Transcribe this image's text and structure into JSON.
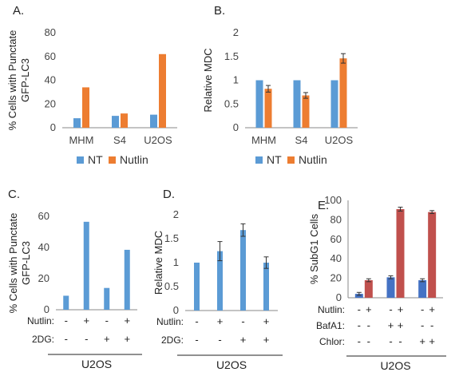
{
  "colors": {
    "nt": "#5B9BD5",
    "nutlin": "#ED7D31",
    "bar_e_blue": "#4472C4",
    "bar_e_red": "#C0504D",
    "axis": "#888888",
    "err": "#333333"
  },
  "chart_data": [
    {
      "panel": "A.",
      "type": "bar",
      "ylabel": [
        "% Cells with Punctate",
        "GFP-LC3"
      ],
      "ylim": [
        0,
        80
      ],
      "yticks": [
        0,
        20,
        40,
        60,
        80
      ],
      "categories": [
        "MHM",
        "S4",
        "U2OS"
      ],
      "series": [
        {
          "name": "NT",
          "values": [
            8,
            10,
            11
          ]
        },
        {
          "name": "Nutlin",
          "values": [
            34,
            12,
            62
          ]
        }
      ],
      "legend": "bottom"
    },
    {
      "panel": "B.",
      "type": "bar",
      "ylabel": [
        "Relative MDC"
      ],
      "ylim": [
        0,
        2
      ],
      "yticks": [
        0,
        0.5,
        1,
        1.5,
        2
      ],
      "ytick_labels": [
        "0",
        "0.5",
        "1",
        "1.5",
        "2"
      ],
      "categories": [
        "MHM",
        "S4",
        "U2OS"
      ],
      "series": [
        {
          "name": "NT",
          "values": [
            1.0,
            1.0,
            1.0
          ],
          "errors": [
            0,
            0,
            0
          ]
        },
        {
          "name": "Nutlin",
          "values": [
            0.82,
            0.68,
            1.46
          ],
          "errors": [
            0.07,
            0.06,
            0.1
          ]
        }
      ],
      "legend": "bottom"
    },
    {
      "panel": "C.",
      "type": "bar",
      "ylabel": [
        "% Cells with Punctate",
        "GFP-LC3"
      ],
      "ylim": [
        0,
        60
      ],
      "yticks": [
        0,
        20,
        40,
        60
      ],
      "values": [
        9,
        56.5,
        14,
        38.5
      ],
      "condition_rows": [
        {
          "label": "Nutlin:",
          "signs": [
            "-",
            "+",
            "-",
            "+"
          ]
        },
        {
          "label": "2DG:",
          "signs": [
            "-",
            "-",
            "+",
            "+"
          ]
        }
      ],
      "group_label": "U2OS"
    },
    {
      "panel": "D.",
      "type": "bar",
      "ylabel": [
        "Relative MDC"
      ],
      "ylim": [
        0,
        2
      ],
      "yticks": [
        0,
        0.5,
        1,
        1.5,
        2
      ],
      "ytick_labels": [
        "0",
        "0.5",
        "1",
        "1.5",
        "2"
      ],
      "values": [
        1.0,
        1.24,
        1.68,
        1.0
      ],
      "errors": [
        0,
        0.2,
        0.13,
        0.12
      ],
      "condition_rows": [
        {
          "label": "Nutlin:",
          "signs": [
            "-",
            "+",
            "-",
            "+"
          ]
        },
        {
          "label": "2DG:",
          "signs": [
            "-",
            "-",
            "+",
            "+"
          ]
        }
      ],
      "group_label": "U2OS"
    },
    {
      "panel": "E.",
      "type": "bar",
      "ylabel": [
        "% SubG1 Cells"
      ],
      "ylim": [
        0,
        100
      ],
      "yticks": [
        0,
        20,
        40,
        60,
        80,
        100
      ],
      "groups": 3,
      "series": [
        {
          "values": [
            4,
            21,
            18
          ],
          "errors": [
            1.5,
            1.5,
            1.5
          ]
        },
        {
          "values": [
            18,
            91,
            88
          ],
          "errors": [
            1.5,
            2,
            1.5
          ]
        }
      ],
      "condition_rows": [
        {
          "label": "Nutlin:",
          "signs": [
            "-",
            "+",
            "-",
            "+",
            "-",
            "+"
          ]
        },
        {
          "label": "BafA1:",
          "signs": [
            "-",
            "-",
            "+",
            "+",
            "-",
            "-"
          ]
        },
        {
          "label": "Chlor:",
          "signs": [
            "-",
            "-",
            "-",
            "-",
            "+",
            "+"
          ]
        }
      ],
      "group_label": "U2OS"
    }
  ]
}
